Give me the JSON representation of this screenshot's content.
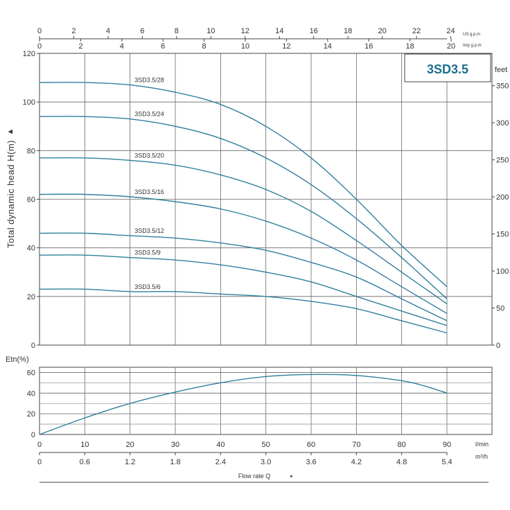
{
  "chart_data": [
    {
      "type": "line",
      "model": "3SD3.5",
      "ylabel": "Total dynamic head H(m)",
      "ylabel_arrow": "▲",
      "ylim": [
        0,
        120
      ],
      "xlim": [
        0,
        90
      ],
      "yticks": [
        0,
        20,
        40,
        60,
        80,
        100,
        120
      ],
      "right_axis": {
        "unit": "feet",
        "ticks": [
          0,
          50,
          100,
          150,
          200,
          250,
          300,
          350
        ]
      },
      "top_axes": [
        {
          "unit": "US g.p.m",
          "ticks": [
            0,
            2,
            4,
            6,
            8,
            10,
            12,
            14,
            16,
            18,
            20,
            22,
            24
          ]
        },
        {
          "unit": "Imp g.p.m",
          "ticks": [
            0,
            2,
            4,
            6,
            8,
            10,
            12,
            14,
            16,
            18,
            20
          ]
        }
      ],
      "series": [
        {
          "name": "3SD3.5/28",
          "x": [
            0,
            10,
            20,
            30,
            40,
            50,
            60,
            70,
            80,
            90
          ],
          "y": [
            108,
            108,
            107,
            104,
            99,
            90,
            77,
            60,
            41,
            24
          ]
        },
        {
          "name": "3SD3.5/24",
          "x": [
            0,
            10,
            20,
            30,
            40,
            50,
            60,
            70,
            80,
            90
          ],
          "y": [
            94,
            94,
            93,
            90,
            85,
            77,
            66,
            52,
            36,
            19
          ]
        },
        {
          "name": "3SD3.5/20",
          "x": [
            0,
            10,
            20,
            30,
            40,
            50,
            60,
            70,
            80,
            90
          ],
          "y": [
            77,
            77,
            76,
            74,
            70,
            64,
            55,
            43,
            30,
            17
          ]
        },
        {
          "name": "3SD3.5/16",
          "x": [
            0,
            10,
            20,
            30,
            40,
            50,
            60,
            70,
            80,
            90
          ],
          "y": [
            62,
            62,
            61,
            59,
            56,
            51,
            44,
            35,
            24,
            13
          ]
        },
        {
          "name": "3SD3.5/12",
          "x": [
            0,
            10,
            20,
            30,
            40,
            50,
            60,
            70,
            80,
            90
          ],
          "y": [
            46,
            46,
            45,
            44,
            42,
            39,
            34,
            28,
            19,
            10
          ]
        },
        {
          "name": "3SD3.5/9",
          "x": [
            0,
            10,
            20,
            30,
            40,
            50,
            60,
            70,
            80,
            90
          ],
          "y": [
            37,
            37,
            36,
            35,
            33,
            30,
            26,
            20,
            14,
            8
          ]
        },
        {
          "name": "3SD3.5/6",
          "x": [
            0,
            10,
            20,
            30,
            40,
            50,
            60,
            70,
            80,
            90
          ],
          "y": [
            23,
            23,
            22,
            22,
            21,
            20,
            18,
            15,
            10,
            5
          ]
        }
      ]
    },
    {
      "type": "line",
      "ylabel": "Etn(%)",
      "ylim": [
        0,
        65
      ],
      "xlim": [
        0,
        90
      ],
      "yticks": [
        0,
        20,
        40,
        60
      ],
      "series": [
        {
          "name": "",
          "x": [
            0,
            10,
            20,
            30,
            40,
            50,
            60,
            70,
            80,
            85,
            90
          ],
          "y": [
            0,
            16,
            30,
            41,
            50,
            56,
            58,
            57,
            52,
            47,
            40
          ]
        }
      ],
      "x_axes": [
        {
          "unit": "l/min",
          "ticks": [
            0,
            10,
            20,
            30,
            40,
            50,
            60,
            70,
            80,
            90
          ]
        },
        {
          "unit": "m³/h",
          "ticks": [
            "0",
            "0.6",
            "1.2",
            "1.8",
            "2.4",
            "3.0",
            "3.6",
            "4.2",
            "4.8",
            "5.4"
          ]
        }
      ],
      "xlabel": "Flow rate Q",
      "xlabel_arrow": "►"
    }
  ]
}
